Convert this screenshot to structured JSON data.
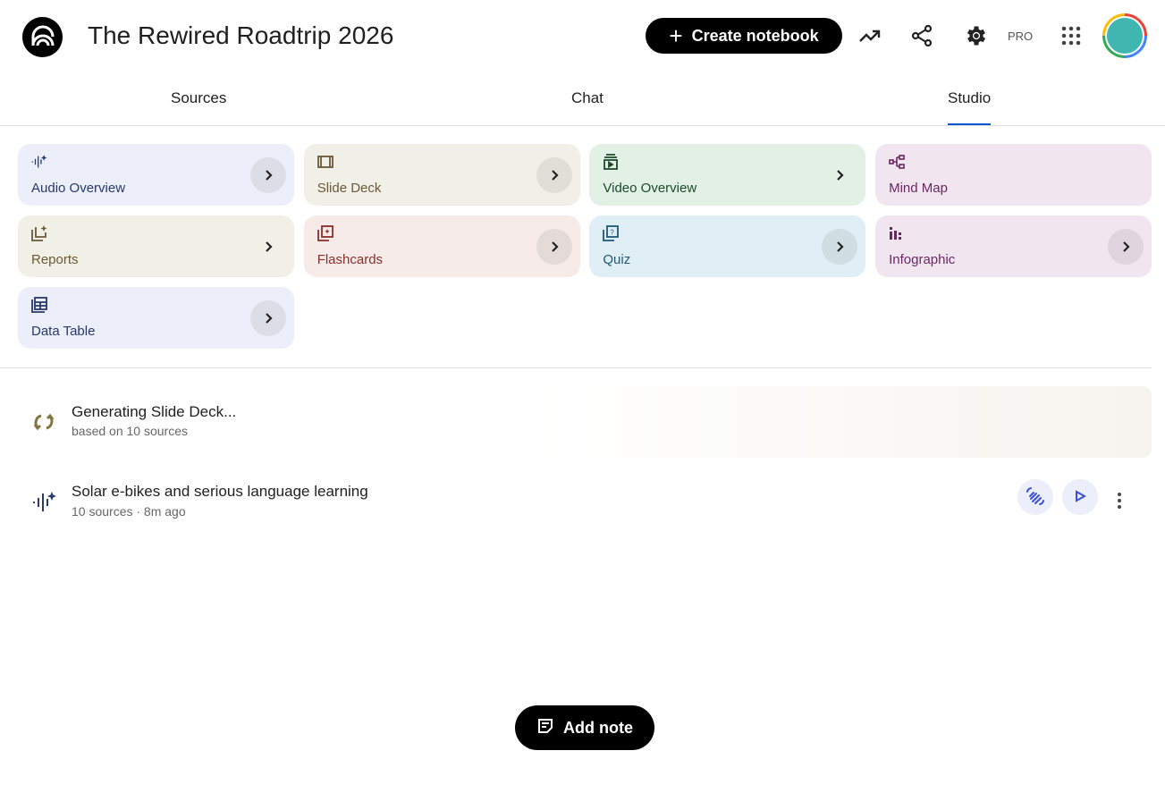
{
  "header": {
    "title": "The Rewired Roadtrip 2026",
    "create_label": "Create notebook",
    "pro_label": "PRO"
  },
  "tabs": [
    {
      "label": "Sources"
    },
    {
      "label": "Chat"
    },
    {
      "label": "Studio",
      "active": true
    }
  ],
  "accent": "#0b57d0",
  "tiles": [
    {
      "label": "Audio Overview",
      "icon": "audio-sparkle-icon",
      "bg": "#eceff9",
      "fg": "#27386b"
    },
    {
      "label": "Slide Deck",
      "icon": "slides-icon",
      "bg": "#f1f0e8",
      "fg": "#6b5836"
    },
    {
      "label": "Video Overview",
      "icon": "video-icon",
      "bg": "#e2f0e5",
      "fg": "#1e4a2b"
    },
    {
      "label": "Mind Map",
      "icon": "mind-map-icon",
      "bg": "#f1e6f0",
      "fg": "#6b2760"
    },
    {
      "label": "Reports",
      "icon": "reports-icon",
      "bg": "#f1f0e6",
      "fg": "#6b5836"
    },
    {
      "label": "Flashcards",
      "icon": "flashcards-icon",
      "bg": "#f6ebe9",
      "fg": "#8a2f2a"
    },
    {
      "label": "Quiz",
      "icon": "quiz-icon",
      "bg": "#dfeff5",
      "fg": "#1f5878"
    },
    {
      "label": "Infographic",
      "icon": "infographic-icon",
      "bg": "#f1e6f0",
      "fg": "#6b2760"
    },
    {
      "label": "Data Table",
      "icon": "data-table-icon",
      "bg": "#eceff9",
      "fg": "#27386b"
    }
  ],
  "items": [
    {
      "title": "Generating Slide Deck...",
      "subtitle": "based on 10 sources",
      "icon": "sync-icon"
    },
    {
      "title": "Solar e-bikes and serious language learning",
      "subtitle": "10 sources · 8m ago",
      "icon": "audio-sparkle-icon"
    }
  ],
  "add_note_label": "Add note"
}
